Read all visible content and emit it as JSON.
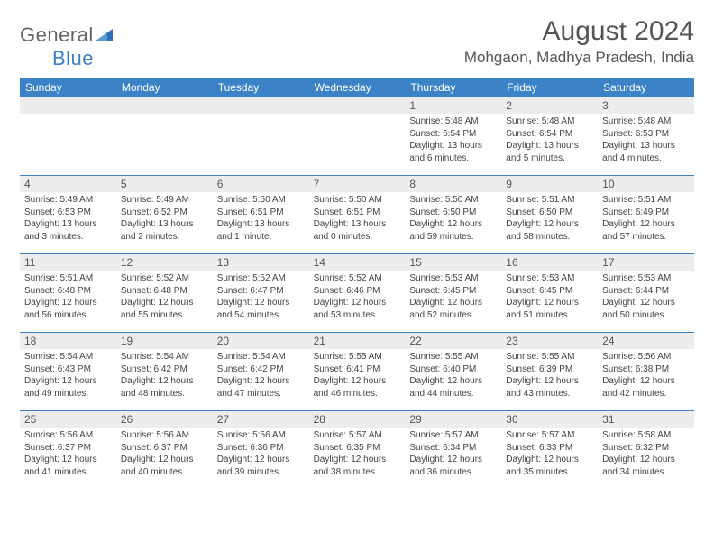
{
  "logo": {
    "word1": "General",
    "word2": "Blue"
  },
  "header": {
    "month_title": "August 2024",
    "location": "Mohgaon, Madhya Pradesh, India"
  },
  "colors": {
    "header_bg": "#3b82c7",
    "header_text": "#ffffff",
    "daynum_bg": "#ededed",
    "border": "#3b7fc4",
    "body_text": "#444444",
    "title_text": "#555555",
    "logo_gray": "#666666",
    "logo_blue": "#3b7fc4",
    "page_bg": "#ffffff"
  },
  "day_names": [
    "Sunday",
    "Monday",
    "Tuesday",
    "Wednesday",
    "Thursday",
    "Friday",
    "Saturday"
  ],
  "weeks": [
    [
      {
        "n": "",
        "sr": "",
        "ss": "",
        "dl": ""
      },
      {
        "n": "",
        "sr": "",
        "ss": "",
        "dl": ""
      },
      {
        "n": "",
        "sr": "",
        "ss": "",
        "dl": ""
      },
      {
        "n": "",
        "sr": "",
        "ss": "",
        "dl": ""
      },
      {
        "n": "1",
        "sr": "Sunrise: 5:48 AM",
        "ss": "Sunset: 6:54 PM",
        "dl": "Daylight: 13 hours and 6 minutes."
      },
      {
        "n": "2",
        "sr": "Sunrise: 5:48 AM",
        "ss": "Sunset: 6:54 PM",
        "dl": "Daylight: 13 hours and 5 minutes."
      },
      {
        "n": "3",
        "sr": "Sunrise: 5:48 AM",
        "ss": "Sunset: 6:53 PM",
        "dl": "Daylight: 13 hours and 4 minutes."
      }
    ],
    [
      {
        "n": "4",
        "sr": "Sunrise: 5:49 AM",
        "ss": "Sunset: 6:53 PM",
        "dl": "Daylight: 13 hours and 3 minutes."
      },
      {
        "n": "5",
        "sr": "Sunrise: 5:49 AM",
        "ss": "Sunset: 6:52 PM",
        "dl": "Daylight: 13 hours and 2 minutes."
      },
      {
        "n": "6",
        "sr": "Sunrise: 5:50 AM",
        "ss": "Sunset: 6:51 PM",
        "dl": "Daylight: 13 hours and 1 minute."
      },
      {
        "n": "7",
        "sr": "Sunrise: 5:50 AM",
        "ss": "Sunset: 6:51 PM",
        "dl": "Daylight: 13 hours and 0 minutes."
      },
      {
        "n": "8",
        "sr": "Sunrise: 5:50 AM",
        "ss": "Sunset: 6:50 PM",
        "dl": "Daylight: 12 hours and 59 minutes."
      },
      {
        "n": "9",
        "sr": "Sunrise: 5:51 AM",
        "ss": "Sunset: 6:50 PM",
        "dl": "Daylight: 12 hours and 58 minutes."
      },
      {
        "n": "10",
        "sr": "Sunrise: 5:51 AM",
        "ss": "Sunset: 6:49 PM",
        "dl": "Daylight: 12 hours and 57 minutes."
      }
    ],
    [
      {
        "n": "11",
        "sr": "Sunrise: 5:51 AM",
        "ss": "Sunset: 6:48 PM",
        "dl": "Daylight: 12 hours and 56 minutes."
      },
      {
        "n": "12",
        "sr": "Sunrise: 5:52 AM",
        "ss": "Sunset: 6:48 PM",
        "dl": "Daylight: 12 hours and 55 minutes."
      },
      {
        "n": "13",
        "sr": "Sunrise: 5:52 AM",
        "ss": "Sunset: 6:47 PM",
        "dl": "Daylight: 12 hours and 54 minutes."
      },
      {
        "n": "14",
        "sr": "Sunrise: 5:52 AM",
        "ss": "Sunset: 6:46 PM",
        "dl": "Daylight: 12 hours and 53 minutes."
      },
      {
        "n": "15",
        "sr": "Sunrise: 5:53 AM",
        "ss": "Sunset: 6:45 PM",
        "dl": "Daylight: 12 hours and 52 minutes."
      },
      {
        "n": "16",
        "sr": "Sunrise: 5:53 AM",
        "ss": "Sunset: 6:45 PM",
        "dl": "Daylight: 12 hours and 51 minutes."
      },
      {
        "n": "17",
        "sr": "Sunrise: 5:53 AM",
        "ss": "Sunset: 6:44 PM",
        "dl": "Daylight: 12 hours and 50 minutes."
      }
    ],
    [
      {
        "n": "18",
        "sr": "Sunrise: 5:54 AM",
        "ss": "Sunset: 6:43 PM",
        "dl": "Daylight: 12 hours and 49 minutes."
      },
      {
        "n": "19",
        "sr": "Sunrise: 5:54 AM",
        "ss": "Sunset: 6:42 PM",
        "dl": "Daylight: 12 hours and 48 minutes."
      },
      {
        "n": "20",
        "sr": "Sunrise: 5:54 AM",
        "ss": "Sunset: 6:42 PM",
        "dl": "Daylight: 12 hours and 47 minutes."
      },
      {
        "n": "21",
        "sr": "Sunrise: 5:55 AM",
        "ss": "Sunset: 6:41 PM",
        "dl": "Daylight: 12 hours and 46 minutes."
      },
      {
        "n": "22",
        "sr": "Sunrise: 5:55 AM",
        "ss": "Sunset: 6:40 PM",
        "dl": "Daylight: 12 hours and 44 minutes."
      },
      {
        "n": "23",
        "sr": "Sunrise: 5:55 AM",
        "ss": "Sunset: 6:39 PM",
        "dl": "Daylight: 12 hours and 43 minutes."
      },
      {
        "n": "24",
        "sr": "Sunrise: 5:56 AM",
        "ss": "Sunset: 6:38 PM",
        "dl": "Daylight: 12 hours and 42 minutes."
      }
    ],
    [
      {
        "n": "25",
        "sr": "Sunrise: 5:56 AM",
        "ss": "Sunset: 6:37 PM",
        "dl": "Daylight: 12 hours and 41 minutes."
      },
      {
        "n": "26",
        "sr": "Sunrise: 5:56 AM",
        "ss": "Sunset: 6:37 PM",
        "dl": "Daylight: 12 hours and 40 minutes."
      },
      {
        "n": "27",
        "sr": "Sunrise: 5:56 AM",
        "ss": "Sunset: 6:36 PM",
        "dl": "Daylight: 12 hours and 39 minutes."
      },
      {
        "n": "28",
        "sr": "Sunrise: 5:57 AM",
        "ss": "Sunset: 6:35 PM",
        "dl": "Daylight: 12 hours and 38 minutes."
      },
      {
        "n": "29",
        "sr": "Sunrise: 5:57 AM",
        "ss": "Sunset: 6:34 PM",
        "dl": "Daylight: 12 hours and 36 minutes."
      },
      {
        "n": "30",
        "sr": "Sunrise: 5:57 AM",
        "ss": "Sunset: 6:33 PM",
        "dl": "Daylight: 12 hours and 35 minutes."
      },
      {
        "n": "31",
        "sr": "Sunrise: 5:58 AM",
        "ss": "Sunset: 6:32 PM",
        "dl": "Daylight: 12 hours and 34 minutes."
      }
    ]
  ]
}
